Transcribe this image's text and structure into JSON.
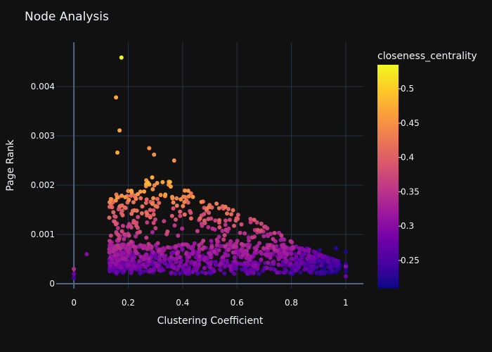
{
  "chart_data": {
    "type": "scatter",
    "title": "Node Analysis",
    "xlabel": "Clustering Coefficient",
    "ylabel": "Page Rank",
    "xlim": [
      -0.065,
      1.065
    ],
    "ylim": [
      -0.0001,
      0.0049
    ],
    "x_ticks": [
      0,
      0.2,
      0.4,
      0.6,
      0.8,
      1
    ],
    "x_tick_labels": [
      "0",
      "0.2",
      "0.4",
      "0.6",
      "0.8",
      "1"
    ],
    "y_ticks": [
      0,
      0.001,
      0.002,
      0.003,
      0.004
    ],
    "y_tick_labels": [
      "0",
      "0.001",
      "0.002",
      "0.003",
      "0.004"
    ],
    "grid": true,
    "colorbar": {
      "title": "closeness_centrality",
      "range": [
        0.21,
        0.535
      ],
      "ticks": [
        0.25,
        0.3,
        0.35,
        0.4,
        0.45,
        0.5
      ],
      "tick_labels": [
        "0.25",
        "0.3",
        "0.35",
        "0.4",
        "0.45",
        "0.5"
      ],
      "colorscale": "plasma"
    },
    "highlighted_points": [
      {
        "x": 0.175,
        "y": 0.00459,
        "c": 0.535
      },
      {
        "x": 0.155,
        "y": 0.00378,
        "c": 0.47
      },
      {
        "x": 0.168,
        "y": 0.00311,
        "c": 0.47
      },
      {
        "x": 0.16,
        "y": 0.00266,
        "c": 0.47
      },
      {
        "x": 0.277,
        "y": 0.00275,
        "c": 0.45
      },
      {
        "x": 0.295,
        "y": 0.00262,
        "c": 0.45
      },
      {
        "x": 0.369,
        "y": 0.0025,
        "c": 0.45
      },
      {
        "x": 0.213,
        "y": 0.00185,
        "c": 0.45
      },
      {
        "x": 0.0,
        "y": 0.0003,
        "c": 0.34
      },
      {
        "x": 0.0,
        "y": 0.0002,
        "c": 0.28
      },
      {
        "x": 0.0,
        "y": 0.00012,
        "c": 0.25
      },
      {
        "x": 0.047,
        "y": 0.0006,
        "c": 0.3
      },
      {
        "x": 1.0,
        "y": 0.00065,
        "c": 0.22
      },
      {
        "x": 1.0,
        "y": 0.00035,
        "c": 0.3
      },
      {
        "x": 1.0,
        "y": 0.00015,
        "c": 0.28
      },
      {
        "x": 0.965,
        "y": 0.00072,
        "c": 0.23
      },
      {
        "x": 0.905,
        "y": 0.00068,
        "c": 0.23
      }
    ],
    "cluster_summary": {
      "n_points": 1100,
      "x_range": [
        0.13,
        1.0
      ],
      "dense_band_y": [
        0.0002,
        0.0015
      ],
      "upper_envelope": [
        [
          0.15,
          0.0018
        ],
        [
          0.2,
          0.0019
        ],
        [
          0.3,
          0.0022
        ],
        [
          0.4,
          0.002
        ],
        [
          0.5,
          0.0017
        ],
        [
          0.6,
          0.0015
        ],
        [
          0.7,
          0.0012
        ],
        [
          0.8,
          0.0009
        ],
        [
          0.9,
          0.0006
        ],
        [
          1.0,
          0.0004
        ]
      ]
    }
  }
}
